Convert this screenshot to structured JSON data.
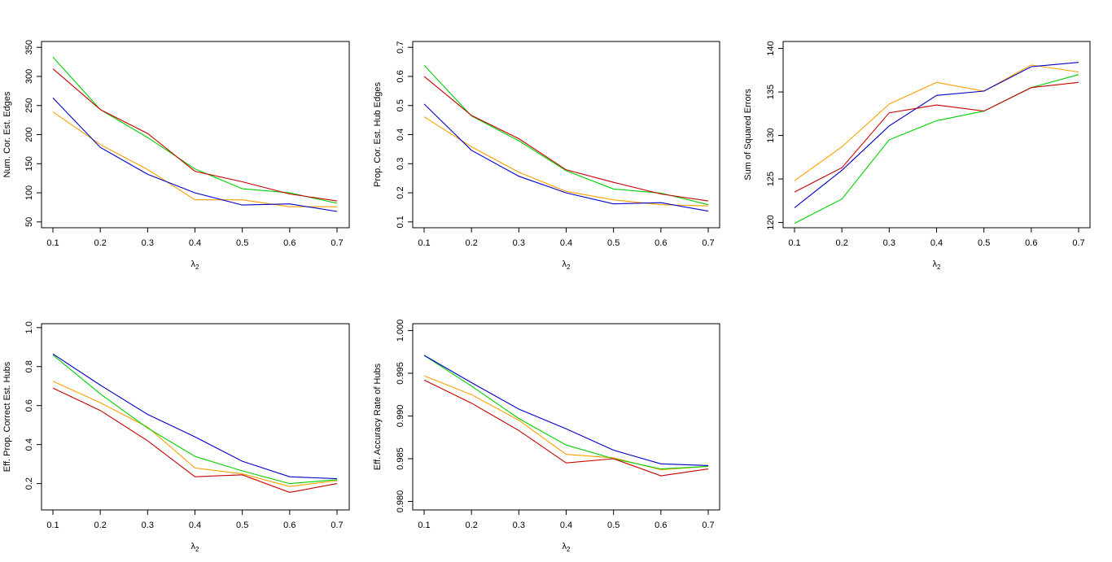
{
  "x_values": [
    0.1,
    0.2,
    0.3,
    0.4,
    0.5,
    0.6,
    0.7
  ],
  "series_colors": [
    "#ff9f00",
    "#00d000",
    "#0000c8",
    "#c80000"
  ],
  "chart_data": [
    {
      "type": "line",
      "ylabel": "Num. Cor. Est. Edges",
      "xlabel": "λ2",
      "xlim": [
        0.1,
        0.7
      ],
      "ylim": [
        40,
        360
      ],
      "x_ticks": [
        "0.1",
        "0.2",
        "0.3",
        "0.4",
        "0.5",
        "0.6",
        "0.7"
      ],
      "y_ticks": [
        "50",
        "100",
        "150",
        "200",
        "250",
        "300",
        "350"
      ],
      "x": [
        0.1,
        0.2,
        0.3,
        0.4,
        0.5,
        0.6,
        0.7
      ],
      "series": [
        {
          "color": "#ff9f00",
          "values": [
            239,
            183,
            140,
            88,
            88,
            76,
            76
          ]
        },
        {
          "color": "#00d000",
          "values": [
            333,
            243,
            195,
            141,
            107,
            100,
            82
          ]
        },
        {
          "color": "#0000c8",
          "values": [
            263,
            178,
            132,
            100,
            79,
            81,
            68
          ]
        },
        {
          "color": "#c80000",
          "values": [
            313,
            243,
            202,
            137,
            119,
            98,
            86
          ]
        }
      ]
    },
    {
      "type": "line",
      "ylabel": "Prop. Cor. Est. Hub Edges",
      "xlabel": "λ2",
      "xlim": [
        0.1,
        0.7
      ],
      "ylim": [
        0.08,
        0.72
      ],
      "x_ticks": [
        "0.1",
        "0.2",
        "0.3",
        "0.4",
        "0.5",
        "0.6",
        "0.7"
      ],
      "y_ticks": [
        "0.1",
        "0.2",
        "0.3",
        "0.4",
        "0.5",
        "0.6",
        "0.7"
      ],
      "x": [
        0.1,
        0.2,
        0.3,
        0.4,
        0.5,
        0.6,
        0.7
      ],
      "series": [
        {
          "color": "#ff9f00",
          "values": [
            0.461,
            0.358,
            0.271,
            0.205,
            0.176,
            0.159,
            0.155
          ]
        },
        {
          "color": "#00d000",
          "values": [
            0.638,
            0.464,
            0.379,
            0.276,
            0.213,
            0.199,
            0.159
          ]
        },
        {
          "color": "#0000c8",
          "values": [
            0.505,
            0.346,
            0.257,
            0.2,
            0.162,
            0.166,
            0.137
          ]
        },
        {
          "color": "#c80000",
          "values": [
            0.6,
            0.466,
            0.386,
            0.279,
            0.236,
            0.196,
            0.172
          ]
        }
      ]
    },
    {
      "type": "line",
      "ylabel": "Sum of Squared Errors",
      "xlabel": "λ2",
      "xlim": [
        0.1,
        0.7
      ],
      "ylim": [
        119.4,
        140.8
      ],
      "x_ticks": [
        "0.1",
        "0.2",
        "0.3",
        "0.4",
        "0.5",
        "0.6",
        "0.7"
      ],
      "y_ticks": [
        "120",
        "125",
        "130",
        "135",
        "140"
      ],
      "x": [
        0.1,
        0.2,
        0.3,
        0.4,
        0.5,
        0.6,
        0.7
      ],
      "series": [
        {
          "color": "#ff9f00",
          "values": [
            124.8,
            128.7,
            133.6,
            136.1,
            135.1,
            138.1,
            137.3
          ]
        },
        {
          "color": "#00d000",
          "values": [
            119.9,
            122.7,
            129.5,
            131.7,
            132.8,
            135.5,
            137.0
          ]
        },
        {
          "color": "#0000c8",
          "values": [
            121.7,
            126.0,
            131.1,
            134.6,
            135.1,
            137.9,
            138.4
          ]
        },
        {
          "color": "#c80000",
          "values": [
            123.5,
            126.3,
            132.6,
            133.5,
            132.8,
            135.5,
            136.1
          ]
        }
      ]
    },
    {
      "type": "line",
      "ylabel": "Eff. Prop. Correct Est. Hubs",
      "xlabel": "λ2",
      "xlim": [
        0.1,
        0.7
      ],
      "ylim": [
        0.065,
        1.02
      ],
      "x_ticks": [
        "0.1",
        "0.2",
        "0.3",
        "0.4",
        "0.5",
        "0.6",
        "0.7"
      ],
      "y_ticks": [
        "0.2",
        "0.4",
        "0.6",
        "0.8",
        "1.0"
      ],
      "x": [
        0.1,
        0.2,
        0.3,
        0.4,
        0.5,
        0.6,
        0.7
      ],
      "series": [
        {
          "color": "#ff9f00",
          "values": [
            0.725,
            0.615,
            0.49,
            0.28,
            0.25,
            0.185,
            0.215
          ]
        },
        {
          "color": "#00d000",
          "values": [
            0.86,
            0.66,
            0.485,
            0.34,
            0.265,
            0.2,
            0.22
          ]
        },
        {
          "color": "#0000c8",
          "values": [
            0.865,
            0.705,
            0.555,
            0.44,
            0.315,
            0.235,
            0.225
          ]
        },
        {
          "color": "#c80000",
          "values": [
            0.69,
            0.575,
            0.42,
            0.235,
            0.245,
            0.155,
            0.2
          ]
        }
      ]
    },
    {
      "type": "line",
      "ylabel": "Eff. Accuracy Rate of Hubs",
      "xlabel": "λ2",
      "xlim": [
        0.1,
        0.7
      ],
      "ylim": [
        0.979,
        1.0008
      ],
      "x_ticks": [
        "0.1",
        "0.2",
        "0.3",
        "0.4",
        "0.5",
        "0.6",
        "0.7"
      ],
      "y_ticks": [
        "0.980",
        "0.985",
        "0.990",
        "0.995",
        "1.000"
      ],
      "x": [
        0.1,
        0.2,
        0.3,
        0.4,
        0.5,
        0.6,
        0.7
      ],
      "series": [
        {
          "color": "#ff9f00",
          "values": [
            0.9947,
            0.9925,
            0.9895,
            0.9855,
            0.9851,
            0.9837,
            0.9841
          ]
        },
        {
          "color": "#00d000",
          "values": [
            0.9971,
            0.9935,
            0.9897,
            0.9866,
            0.985,
            0.9838,
            0.9841
          ]
        },
        {
          "color": "#0000c8",
          "values": [
            0.9971,
            0.9939,
            0.9908,
            0.9885,
            0.986,
            0.9844,
            0.9842
          ]
        },
        {
          "color": "#c80000",
          "values": [
            0.9942,
            0.9915,
            0.9883,
            0.9845,
            0.985,
            0.983,
            0.9838
          ]
        }
      ]
    }
  ]
}
